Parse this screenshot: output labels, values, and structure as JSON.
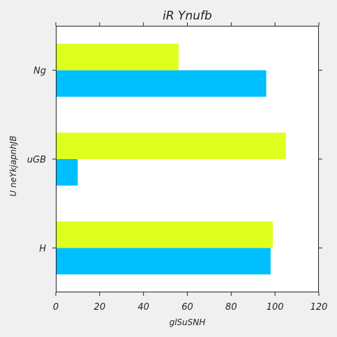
{
  "chart_data": {
    "type": "bar",
    "orientation": "horizontal",
    "title": "iR Ynufb",
    "xlabel": "glSuSNH",
    "ylabel": "U neYkjapnhJB",
    "categories": [
      "H",
      "uGB",
      "Ng"
    ],
    "series": [
      {
        "values": [
          98,
          10,
          96
        ],
        "color": "#00bfff"
      },
      {
        "values": [
          99,
          105,
          56
        ],
        "color": "#dfff1f"
      }
    ],
    "xlim": [
      0,
      120
    ],
    "xticks": [
      0,
      20,
      40,
      60,
      80,
      100,
      120
    ],
    "grid": false,
    "legend": "none"
  }
}
